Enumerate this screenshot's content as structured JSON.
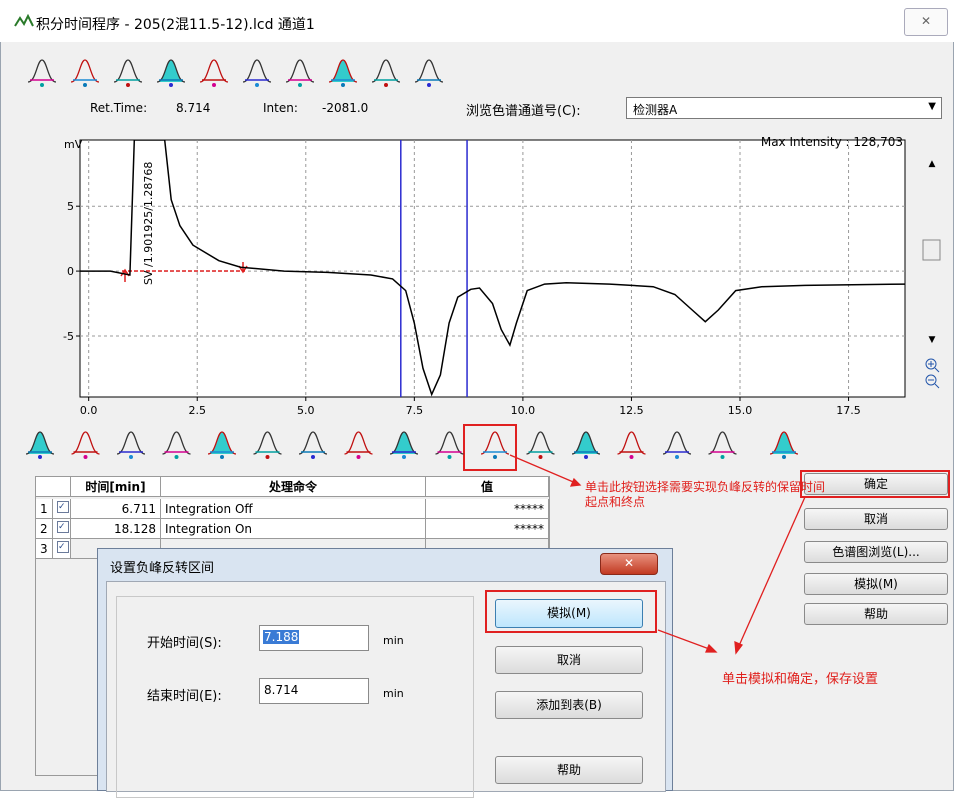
{
  "window": {
    "title": "积分时间程序 - 205(2混11.5-12).lcd 通道1"
  },
  "readout": {
    "ret_time_label": "Ret.Time:",
    "ret_time": "8.714",
    "inten_label": "Inten:",
    "inten": "-2081.0",
    "channel_label": "浏览色谱通道号(C):",
    "channel": "检测器A"
  },
  "chart_data": {
    "type": "line",
    "y_label": "mV",
    "max_intensity": "Max Intensity : 128,703",
    "annotation": "SV /1.901925/1.28768",
    "x": [
      -0.2,
      0.5,
      0.95,
      1.05,
      1.75,
      1.9,
      2.1,
      2.4,
      3.0,
      3.5,
      4.5,
      5.5,
      6.5,
      7.0,
      7.3,
      7.5,
      7.7,
      7.9,
      8.1,
      8.3,
      8.5,
      8.8,
      9.0,
      9.3,
      9.5,
      9.7,
      9.85,
      10.1,
      10.5,
      11.0,
      12.0,
      13.0,
      13.5,
      13.9,
      14.2,
      14.5,
      14.9,
      15.5,
      16.5,
      18.8
    ],
    "series": [
      {
        "color": "#000000",
        "values": [
          0.0,
          0.0,
          -0.3,
          10.1,
          10.1,
          5.5,
          3.5,
          2.0,
          0.8,
          0.3,
          0.0,
          -0.1,
          -0.3,
          -0.6,
          -1.5,
          -4.0,
          -7.5,
          -9.5,
          -8.0,
          -4.0,
          -2.0,
          -1.4,
          -1.3,
          -2.5,
          -4.5,
          -5.7,
          -4.0,
          -1.5,
          -1.0,
          -0.9,
          -1.0,
          -1.2,
          -1.8,
          -3.0,
          -3.9,
          -3.0,
          -1.5,
          -1.2,
          -1.1,
          -1.0
        ]
      }
    ],
    "xlim": [
      -0.2,
      18.8
    ],
    "ylim": [
      -9.7,
      10.1
    ],
    "xticks": [
      {
        "value": 0,
        "label": "0.0"
      },
      {
        "value": 2.5,
        "label": "2.5"
      },
      {
        "value": 5,
        "label": "5.0"
      },
      {
        "value": 7.5,
        "label": "7.5"
      },
      {
        "value": 10,
        "label": "10.0"
      },
      {
        "value": 12.5,
        "label": "12.5"
      },
      {
        "value": 15,
        "label": "15.0"
      },
      {
        "value": 17.5,
        "label": "17.5"
      }
    ],
    "yticks": [
      5,
      0,
      -5
    ],
    "grid": true,
    "markers": {
      "values": [
        7.188,
        8.714
      ],
      "color": "#2b2bd0"
    }
  },
  "table": {
    "columns": [
      "时间[min]",
      "处理命令",
      "值"
    ],
    "rows": [
      {
        "index": "1",
        "time": "6.711",
        "command": "Integration Off",
        "value": "*****"
      },
      {
        "index": "2",
        "time": "18.128",
        "command": "Integration On",
        "value": "*****"
      },
      {
        "index": "3"
      }
    ]
  },
  "side_buttons": [
    "确定",
    "取消",
    "色谱图浏览(L)...",
    "模拟(M)",
    "帮助"
  ],
  "annotations": [
    "单击此按钮选择需要实现负峰反转的保留时间起点和终点",
    "单击模拟和确定，保存设置"
  ],
  "dialog": {
    "title": "设置负峰反转区间",
    "start_label": "开始时间(S):",
    "start_value": "7.188",
    "end_label": "结束时间(E):",
    "end_value": "8.714",
    "unit": "min",
    "buttons": [
      "模拟(M)",
      "取消",
      "添加到表(B)",
      "帮助"
    ]
  }
}
